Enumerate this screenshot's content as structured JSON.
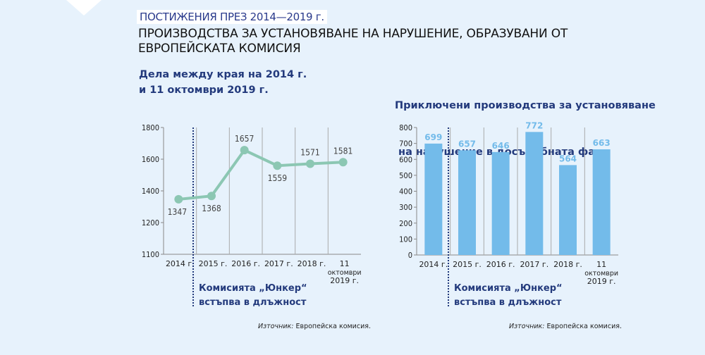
{
  "header": {
    "kicker": "ПОСТИЖЕНИЯ ПРЕЗ 2014—2019 г.",
    "title": "ПРОИЗВОДСТВА ЗА УСТАНОВЯВАНЕ НА НАРУШЕНИЕ, ОБРАЗУВАНИ ОТ ЕВРОПЕЙСКАТА КОМИСИЯ"
  },
  "colors": {
    "background": "#e7f2fc",
    "line": "#8cc7b3",
    "bar": "#73bbea",
    "bar_label": "#73bbea",
    "accent": "#233a7c"
  },
  "chart_data": [
    {
      "type": "line",
      "title_lines": [
        "Дела между края на 2014 г.",
        "и 11 октомври 2019 г."
      ],
      "categories": [
        [
          "2014 г."
        ],
        [
          "2015 г."
        ],
        [
          "2016 г."
        ],
        [
          "2017 г."
        ],
        [
          "2018 г."
        ],
        [
          "11",
          "октомври",
          "2019 г."
        ]
      ],
      "values": [
        1347,
        1368,
        1657,
        1559,
        1571,
        1581
      ],
      "label_pos": [
        "below",
        "below",
        "above",
        "below",
        "above",
        "above"
      ],
      "yticks": [
        1100,
        1200,
        1400,
        1600,
        1800
      ],
      "ylim": [
        1100,
        1800
      ],
      "grid": "vertical",
      "annotation": [
        "Комисията „Юнкер“",
        "встъпва в длъжност"
      ],
      "source_label": "Източник:",
      "source": "Европейска комисия."
    },
    {
      "type": "bar",
      "title_lines": [
        "Приключени производства за установяване",
        " на нарушение в досъдебната фаза"
      ],
      "categories": [
        [
          "2014 г."
        ],
        [
          "2015 г."
        ],
        [
          "2016 г."
        ],
        [
          "2017 г."
        ],
        [
          "2018 г."
        ],
        [
          "11",
          "октомври",
          "2019 г."
        ]
      ],
      "values": [
        699,
        657,
        646,
        772,
        564,
        663
      ],
      "yticks": [
        0,
        100,
        200,
        300,
        400,
        500,
        600,
        700,
        800
      ],
      "ylim": [
        0,
        800
      ],
      "grid": "vertical",
      "annotation": [
        "Комисията „Юнкер“",
        "встъпва в длъжност"
      ],
      "source_label": "Източник:",
      "source": "Европейска комисия."
    }
  ]
}
